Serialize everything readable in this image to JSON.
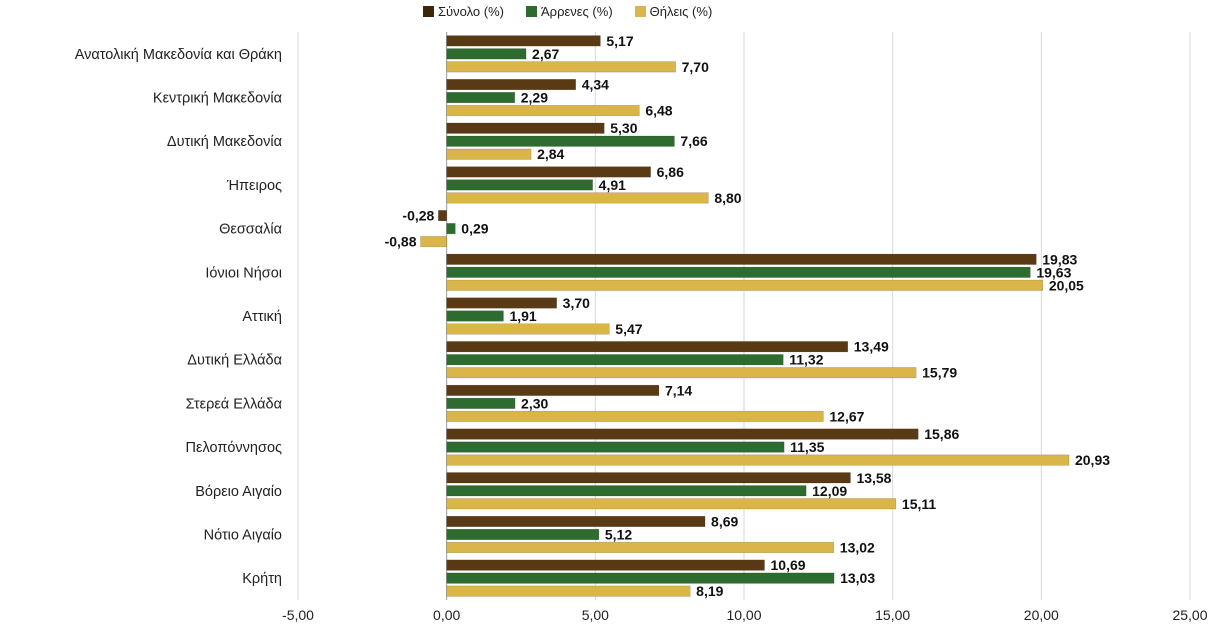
{
  "chart_data": {
    "type": "bar",
    "orientation": "horizontal",
    "title": "",
    "xlabel": "",
    "ylabel": "",
    "xlim": [
      -5,
      25
    ],
    "x_ticks": [
      "-5,00",
      "0,00",
      "5,00",
      "10,00",
      "15,00",
      "20,00",
      "25,00"
    ],
    "grid": true,
    "legend_position": "top",
    "categories": [
      "Ανατολική Μακεδονία και Θράκη",
      "Κεντρική Μακεδονία",
      "Δυτική Μακεδονία",
      "Ήπειρος",
      "Θεσσαλία",
      "Ιόνιοι Νήσοι",
      "Αττική",
      "Δυτική Ελλάδα",
      "Στερεά Ελλάδα",
      "Πελοπόννησος",
      "Βόρειο Αιγαίο",
      "Νότιο Αιγαίο",
      "Κρήτη"
    ],
    "series": [
      {
        "name": "Σύνολο (%)",
        "color": "#5a3a14",
        "values": [
          5.17,
          4.34,
          5.3,
          6.86,
          -0.28,
          19.83,
          3.7,
          13.49,
          7.14,
          15.86,
          13.58,
          8.69,
          10.69
        ],
        "labels": [
          "5,17",
          "4,34",
          "5,30",
          "6,86",
          "-0,28",
          "19,83",
          "3,70",
          "13,49",
          "7,14",
          "15,86",
          "13,58",
          "8,69",
          "10,69"
        ]
      },
      {
        "name": "Άρρενες (%)",
        "color": "#2e6b2e",
        "values": [
          2.67,
          2.29,
          7.66,
          4.91,
          0.29,
          19.63,
          1.91,
          11.32,
          2.3,
          11.35,
          12.09,
          5.12,
          13.03
        ],
        "labels": [
          "2,67",
          "2,29",
          "7,66",
          "4,91",
          "0,29",
          "19,63",
          "1,91",
          "11,32",
          "2,30",
          "11,35",
          "12,09",
          "5,12",
          "13,03"
        ]
      },
      {
        "name": "Θήλεις (%)",
        "color": "#d9b54a",
        "values": [
          7.7,
          6.48,
          2.84,
          8.8,
          -0.88,
          20.05,
          5.47,
          15.79,
          12.67,
          20.93,
          15.11,
          13.02,
          8.19
        ],
        "labels": [
          "7,70",
          "6,48",
          "2,84",
          "8,80",
          "-0,88",
          "20,05",
          "5,47",
          "15,79",
          "12,67",
          "20,93",
          "15,11",
          "13,02",
          "8,19"
        ]
      }
    ]
  }
}
